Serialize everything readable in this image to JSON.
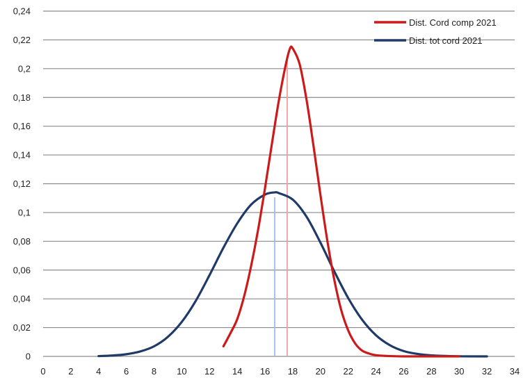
{
  "chart_data": {
    "type": "line",
    "title": "",
    "xlabel": "",
    "ylabel": "",
    "xlim": [
      0,
      34
    ],
    "ylim": [
      0,
      0.24
    ],
    "grid": "horizontal",
    "legend_position": "top-right",
    "x_ticks": [
      "0",
      "2",
      "4",
      "6",
      "8",
      "10",
      "12",
      "14",
      "16",
      "18",
      "20",
      "22",
      "24",
      "26",
      "28",
      "30",
      "32",
      "34"
    ],
    "y_ticks": [
      "0",
      "0,02",
      "0,04",
      "0,06",
      "0,08",
      "0,1",
      "0,12",
      "0,14",
      "0,16",
      "0,18",
      "0,2",
      "0,22",
      "0,24"
    ],
    "series": [
      {
        "name": "Dist. Cord comp 2021",
        "color": "#cc1a1a",
        "mean_line_x": 17.6,
        "mean_line_color": "#f0a0a0",
        "points": [
          [
            13.0,
            0.007
          ],
          [
            13.5,
            0.016
          ],
          [
            14.0,
            0.026
          ],
          [
            14.5,
            0.042
          ],
          [
            15.0,
            0.063
          ],
          [
            15.5,
            0.088
          ],
          [
            16.0,
            0.117
          ],
          [
            16.5,
            0.148
          ],
          [
            17.0,
            0.178
          ],
          [
            17.5,
            0.203
          ],
          [
            17.8,
            0.214
          ],
          [
            18.0,
            0.214
          ],
          [
            18.5,
            0.203
          ],
          [
            19.0,
            0.178
          ],
          [
            19.5,
            0.146
          ],
          [
            20.0,
            0.112
          ],
          [
            20.5,
            0.08
          ],
          [
            21.0,
            0.053
          ],
          [
            21.5,
            0.032
          ],
          [
            22.0,
            0.018
          ],
          [
            22.5,
            0.009
          ],
          [
            23.0,
            0.004
          ],
          [
            23.5,
            0.002
          ],
          [
            24.0,
            0.0008
          ],
          [
            25.0,
            0.0002
          ],
          [
            26.0,
            0.0
          ],
          [
            28.0,
            0.0
          ],
          [
            30.0,
            0.0
          ]
        ]
      },
      {
        "name": "Dist. tot cord 2021",
        "color": "#1f3a68",
        "mean_line_x": 16.7,
        "mean_line_color": "#9fbfe0",
        "points": [
          [
            4.0,
            0.0002
          ],
          [
            5.0,
            0.0006
          ],
          [
            6.0,
            0.0015
          ],
          [
            7.0,
            0.0034
          ],
          [
            8.0,
            0.007
          ],
          [
            9.0,
            0.0136
          ],
          [
            10.0,
            0.024
          ],
          [
            11.0,
            0.0385
          ],
          [
            12.0,
            0.0565
          ],
          [
            13.0,
            0.0755
          ],
          [
            14.0,
            0.0925
          ],
          [
            15.0,
            0.1055
          ],
          [
            16.0,
            0.1125
          ],
          [
            16.7,
            0.114
          ],
          [
            17.0,
            0.1135
          ],
          [
            18.0,
            0.109
          ],
          [
            19.0,
            0.097
          ],
          [
            20.0,
            0.079
          ],
          [
            21.0,
            0.059
          ],
          [
            22.0,
            0.0405
          ],
          [
            23.0,
            0.0255
          ],
          [
            24.0,
            0.0147
          ],
          [
            25.0,
            0.0078
          ],
          [
            26.0,
            0.0037
          ],
          [
            27.0,
            0.0017
          ],
          [
            28.0,
            0.0007
          ],
          [
            30.0,
            0.0001
          ],
          [
            32.0,
            0.0
          ]
        ]
      }
    ]
  }
}
